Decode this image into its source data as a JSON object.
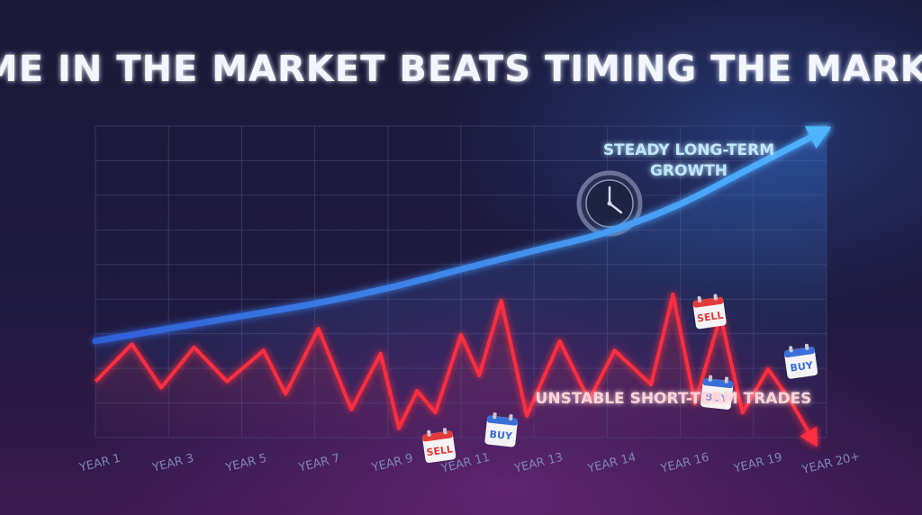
{
  "title": "TIME IN THE MARKET BEATS TIMING THE MARKET",
  "colors": {
    "background_top": "#1b1838",
    "background_bottom": "#3a1a4c",
    "grid": "#4a4d7a",
    "long_term_line": "#3d8eff",
    "short_term_line": "#ff2d3f",
    "sell_calendar": "#e23b3b",
    "buy_calendar": "#3a6ed8"
  },
  "chart_data": {
    "type": "line",
    "title": "TIME IN THE MARKET BEATS TIMING THE MARKET",
    "xlabel": "",
    "ylabel": "",
    "grid": true,
    "x_ticks": [
      "YEAR 1",
      "YEAR 3",
      "YEAR 5",
      "YEAR 7",
      "YEAR 9",
      "YEAR 11",
      "YEAR 13",
      "YEAR 14",
      "YEAR 16",
      "YEAR 19",
      "YEAR 20+"
    ],
    "y_range": [
      0,
      100
    ],
    "series": [
      {
        "name": "STEADY LONG-TERM GROWTH",
        "style": "smooth-arrow",
        "x": [
          0,
          1,
          2,
          3,
          4,
          5,
          6,
          7,
          8,
          9,
          10
        ],
        "y": [
          31,
          35,
          39,
          43,
          48,
          54,
          60,
          66,
          75,
          87,
          99
        ]
      },
      {
        "name": "UNSTABLE SHORT-TERM TRADES",
        "style": "jagged-arrow",
        "x": [
          0,
          0.5,
          0.9,
          1.35,
          1.8,
          2.3,
          2.6,
          3.05,
          3.5,
          3.9,
          4.15,
          4.4,
          4.65,
          5.0,
          5.25,
          5.55,
          5.9,
          6.35,
          6.75,
          7.1,
          7.6,
          7.9,
          8.2,
          8.55,
          8.85,
          9.2,
          9.5,
          9.85
        ],
        "y": [
          18,
          30,
          16,
          29,
          18,
          28,
          14,
          35,
          9,
          27,
          3,
          15,
          8,
          33,
          20,
          44,
          7,
          31,
          12,
          28,
          17,
          46,
          11,
          39,
          8,
          22,
          12,
          -2
        ]
      }
    ],
    "annotations": [
      {
        "text": "STEADY LONG-TERM GROWTH",
        "series": "STEADY LONG-TERM GROWTH"
      },
      {
        "text": "UNSTABLE SHORT-TERM TRADES",
        "series": "UNSTABLE SHORT-TERM TRADES"
      }
    ],
    "markers": [
      {
        "label": "SELL",
        "kind": "sell",
        "x": 4.7,
        "y": -3
      },
      {
        "label": "BUY",
        "kind": "buy",
        "x": 5.55,
        "y": 2
      },
      {
        "label": "SELL",
        "kind": "sell",
        "x": 8.4,
        "y": 40
      },
      {
        "label": "BUY",
        "kind": "buy",
        "x": 8.5,
        "y": 14
      },
      {
        "label": "BUY",
        "kind": "buy",
        "x": 9.65,
        "y": 24
      }
    ],
    "clock_icon": "clock-icon"
  },
  "annotations_text": {
    "long_term_line1": "STEADY LONG-TERM",
    "long_term_line2": "GROWTH",
    "short_term": "UNSTABLE SHORT-TERM TRADES"
  }
}
